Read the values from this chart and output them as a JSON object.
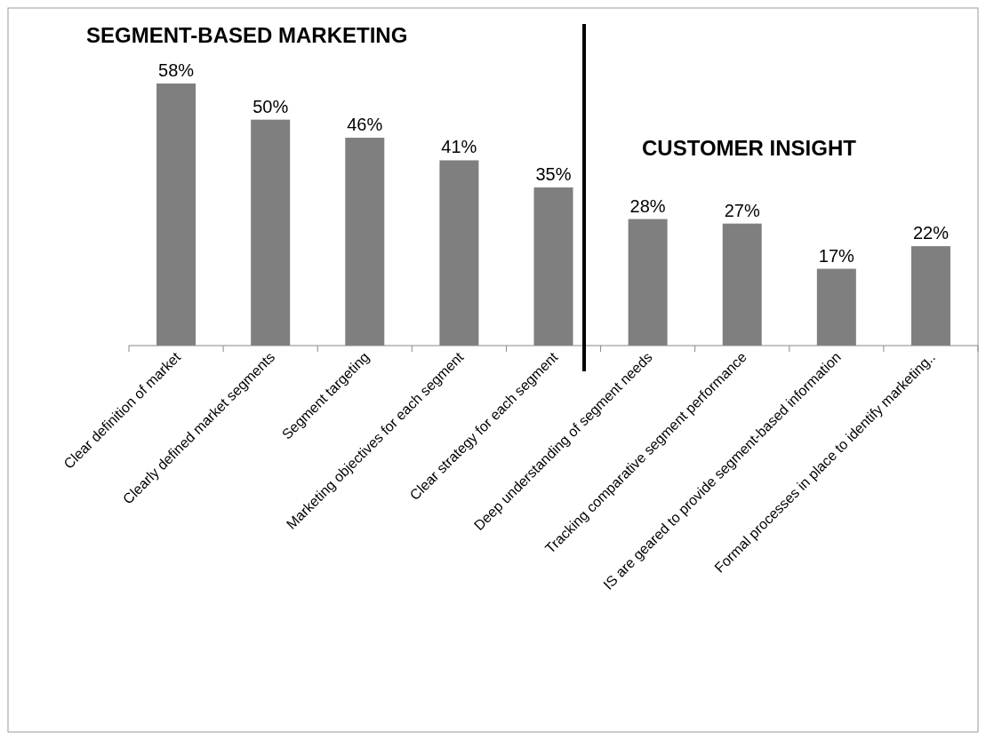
{
  "chart_data": {
    "type": "bar",
    "categories": [
      "Clear definition of market",
      "Clearly defined market segments",
      "Segment targeting",
      "Marketing objectives for each segment",
      "Clear strategy for each segment",
      "Deep understanding of segment needs",
      "Tracking comparative segment performance",
      "IS are geared to provide segment-based information",
      "Formal processes in place to identify marketing.."
    ],
    "values": [
      58,
      50,
      46,
      41,
      35,
      28,
      27,
      17,
      22
    ],
    "value_labels": [
      "58%",
      "50%",
      "46%",
      "41%",
      "35%",
      "28%",
      "27%",
      "17%",
      "22%"
    ],
    "color": "#7f7f7f",
    "annotations": [
      "SEGMENT-BASED MARKETING",
      "CUSTOMER INSIGHT"
    ],
    "grid": false
  }
}
